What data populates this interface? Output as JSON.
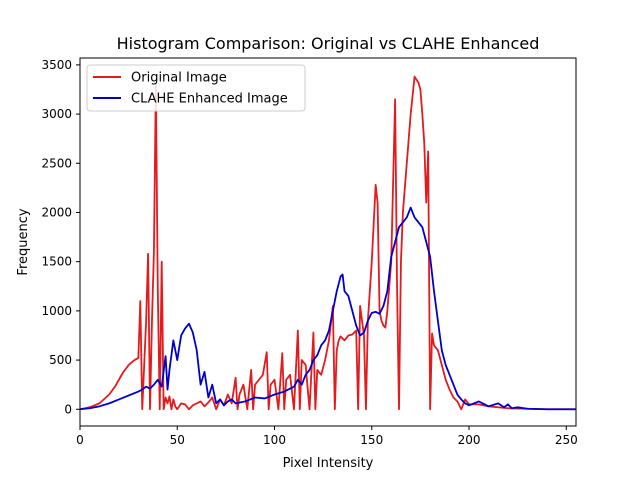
{
  "chart_data": {
    "type": "line",
    "title": "Histogram Comparison: Original vs CLAHE Enhanced",
    "xlabel": "Pixel Intensity",
    "ylabel": "Frequency",
    "xlim": [
      0,
      255
    ],
    "ylim": [
      -170,
      3570
    ],
    "xticks": [
      0,
      50,
      100,
      150,
      200,
      250
    ],
    "yticks": [
      0,
      500,
      1000,
      1500,
      2000,
      2500,
      3000,
      3500
    ],
    "grid": false,
    "legend_position": "top-left",
    "series": [
      {
        "name": "Original Image",
        "color": "#e41a1c",
        "x": [
          0,
          5,
          10,
          15,
          18,
          20,
          22,
          25,
          28,
          30,
          31,
          32,
          33,
          34,
          35,
          36,
          37,
          38,
          39,
          40,
          41,
          42,
          43,
          44,
          45,
          46,
          47,
          48,
          49,
          50,
          52,
          54,
          56,
          58,
          60,
          62,
          64,
          66,
          68,
          70,
          72,
          74,
          76,
          78,
          80,
          81,
          82,
          84,
          86,
          88,
          89,
          90,
          92,
          94,
          96,
          97,
          98,
          100,
          102,
          104,
          105,
          106,
          108,
          110,
          112,
          113,
          114,
          116,
          118,
          120,
          121,
          122,
          124,
          126,
          128,
          130,
          131,
          132,
          133,
          134,
          136,
          138,
          140,
          142,
          143,
          144,
          146,
          147,
          148,
          150,
          152,
          153,
          154,
          155,
          156,
          157,
          158,
          160,
          162,
          163,
          164,
          165,
          166,
          168,
          170,
          172,
          174,
          175,
          176,
          177,
          178,
          179,
          180,
          181,
          182,
          184,
          186,
          188,
          190,
          192,
          194,
          196,
          198,
          200,
          205,
          210,
          220,
          230,
          240,
          255
        ],
        "y": [
          0,
          20,
          60,
          150,
          230,
          300,
          370,
          450,
          500,
          520,
          1100,
          0,
          450,
          900,
          1580,
          0,
          900,
          1600,
          3300,
          1200,
          0,
          1500,
          0,
          120,
          60,
          130,
          0,
          100,
          30,
          0,
          60,
          50,
          0,
          40,
          60,
          80,
          30,
          70,
          120,
          0,
          100,
          40,
          150,
          60,
          320,
          0,
          150,
          250,
          0,
          400,
          0,
          250,
          300,
          350,
          580,
          0,
          250,
          300,
          0,
          570,
          0,
          300,
          350,
          0,
          800,
          0,
          500,
          450,
          0,
          780,
          0,
          400,
          350,
          500,
          700,
          1050,
          0,
          600,
          700,
          740,
          700,
          750,
          760,
          800,
          0,
          1050,
          750,
          0,
          900,
          1500,
          2280,
          2100,
          1000,
          900,
          850,
          830,
          1000,
          1500,
          3150,
          1250,
          0,
          1500,
          2000,
          2500,
          3000,
          3380,
          3320,
          3250,
          3000,
          2700,
          2100,
          2620,
          0,
          770,
          650,
          600,
          450,
          300,
          200,
          120,
          80,
          0,
          100,
          50,
          50,
          30,
          10,
          5,
          0,
          0
        ]
      },
      {
        "name": "CLAHE Enhanced Image",
        "color": "#0000cd",
        "x": [
          0,
          5,
          10,
          15,
          20,
          25,
          30,
          32,
          34,
          36,
          38,
          40,
          42,
          44,
          45,
          46,
          48,
          50,
          52,
          54,
          56,
          58,
          60,
          62,
          64,
          66,
          68,
          70,
          72,
          74,
          76,
          78,
          80,
          85,
          90,
          95,
          100,
          105,
          110,
          112,
          114,
          116,
          118,
          120,
          122,
          124,
          126,
          128,
          130,
          132,
          134,
          135,
          136,
          138,
          140,
          142,
          144,
          146,
          148,
          150,
          152,
          154,
          156,
          158,
          160,
          162,
          164,
          166,
          168,
          170,
          172,
          174,
          176,
          178,
          180,
          182,
          184,
          186,
          188,
          190,
          192,
          194,
          196,
          198,
          200,
          205,
          210,
          215,
          218,
          220,
          222,
          225,
          230,
          240,
          255
        ],
        "y": [
          0,
          10,
          30,
          60,
          100,
          140,
          180,
          200,
          230,
          210,
          250,
          300,
          230,
          540,
          200,
          400,
          700,
          500,
          750,
          820,
          870,
          780,
          600,
          250,
          380,
          120,
          250,
          60,
          100,
          40,
          80,
          100,
          60,
          80,
          120,
          110,
          150,
          180,
          230,
          300,
          250,
          350,
          400,
          500,
          550,
          650,
          700,
          800,
          1000,
          1200,
          1350,
          1370,
          1200,
          1150,
          1000,
          850,
          750,
          780,
          900,
          980,
          990,
          970,
          1050,
          1200,
          1550,
          1700,
          1850,
          1900,
          1950,
          2050,
          1950,
          1900,
          1850,
          1700,
          1550,
          1200,
          900,
          600,
          450,
          350,
          250,
          150,
          100,
          60,
          40,
          80,
          30,
          60,
          20,
          50,
          10,
          20,
          5,
          0,
          0
        ]
      }
    ]
  }
}
